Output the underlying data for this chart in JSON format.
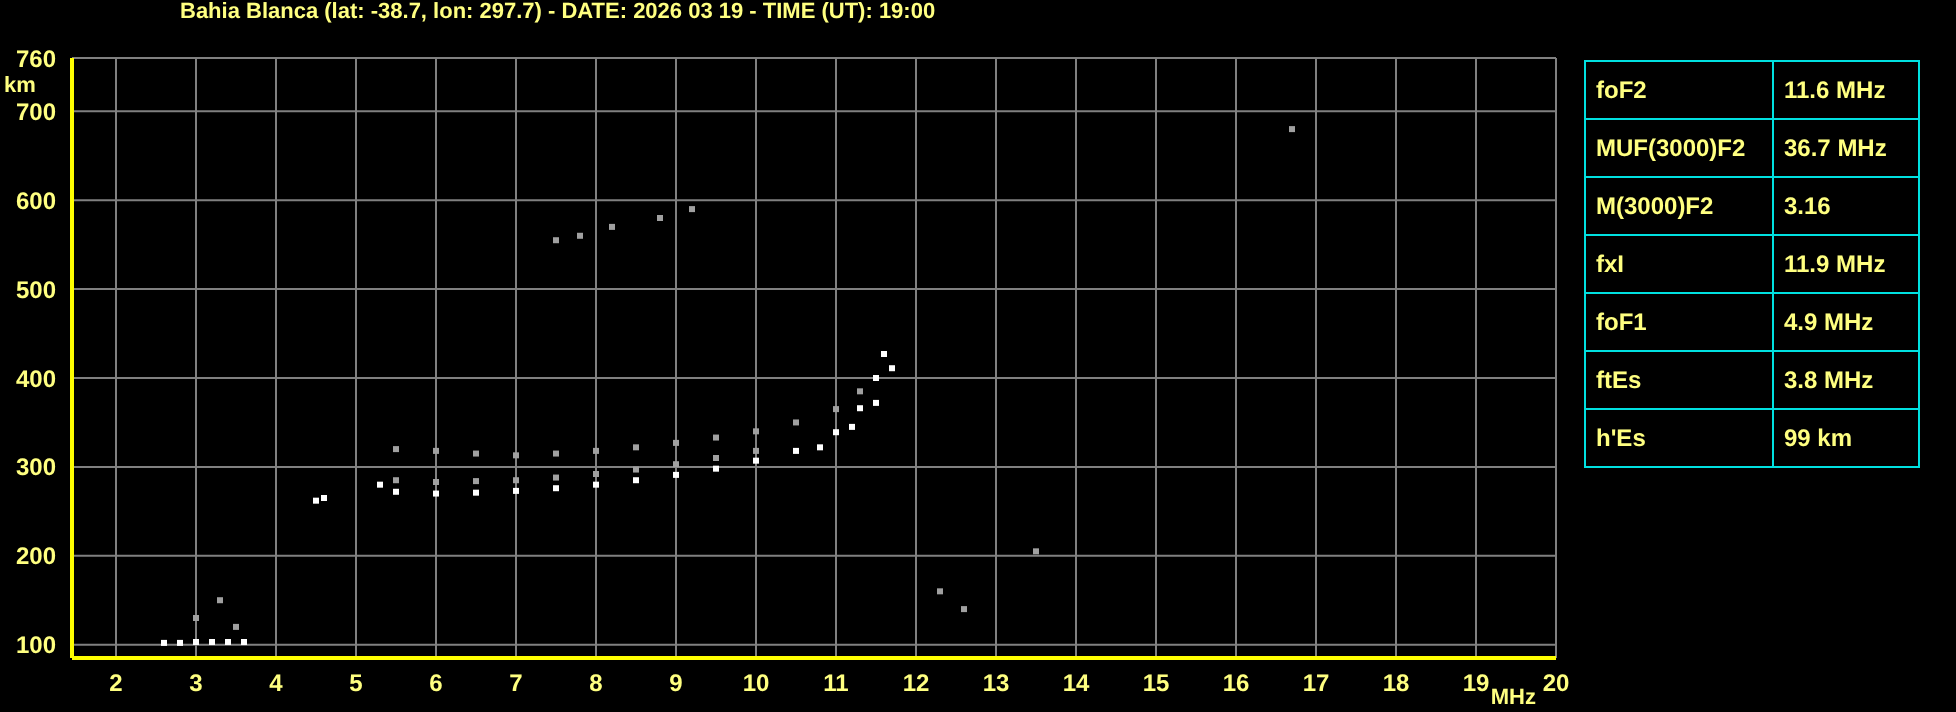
{
  "chart_data": [
    {
      "type": "scatter",
      "title": "Bahia Blanca (lat: -38.7, lon: 297.7) - DATE: 2026 03 19 - TIME (UT): 19:00",
      "xlabel": "MHz",
      "ylabel": "km",
      "xlim": [
        1.45,
        20
      ],
      "ylim": [
        85,
        760
      ],
      "xticks": [
        2,
        3,
        4,
        5,
        6,
        7,
        8,
        9,
        10,
        11,
        12,
        13,
        14,
        15,
        16,
        17,
        18,
        19,
        20
      ],
      "yticks": [
        100,
        200,
        300,
        400,
        500,
        600,
        700,
        760
      ],
      "grid": true,
      "marker": "square",
      "legend": false,
      "series": [
        {
          "color": "#ffffff",
          "x": [
            5.3,
            5.5,
            6,
            6.5,
            7,
            7.5,
            8,
            8.5,
            9,
            9.5,
            10,
            10.5,
            11,
            11.3,
            11.5,
            11.6
          ],
          "values": [
            280,
            272,
            270,
            271,
            273,
            276,
            280,
            285,
            291,
            298,
            307,
            318,
            339,
            366,
            400,
            427
          ]
        },
        {
          "color": "#ffffff",
          "x": [
            10.8,
            11.2,
            11.5,
            11.7
          ],
          "values": [
            322,
            345,
            372,
            411
          ]
        },
        {
          "color": "#ffffff",
          "x": [
            2.6,
            2.8,
            3,
            3.2,
            3.4,
            3.6,
            4.5,
            4.6
          ],
          "values": [
            102,
            102,
            103,
            103,
            103,
            103,
            262,
            265
          ]
        },
        {
          "color": "#a0a0a0",
          "x": [
            5.5,
            6,
            6.5,
            7,
            7.5,
            8,
            8.5,
            9,
            9.5,
            10,
            10.5,
            11,
            11.3
          ],
          "values": [
            320,
            318,
            315,
            313,
            315,
            318,
            322,
            327,
            333,
            340,
            350,
            365,
            385
          ]
        },
        {
          "color": "#a0a0a0",
          "x": [
            5.5,
            6,
            6.5,
            7,
            7.5,
            8,
            8.5,
            9,
            9.5,
            10
          ],
          "values": [
            285,
            283,
            284,
            285,
            288,
            292,
            297,
            303,
            310,
            318
          ]
        },
        {
          "color": "#a0a0a0",
          "x": [
            7.5,
            7.8,
            8.2,
            8.8,
            9.2,
            3,
            3.3,
            3.5,
            12.3,
            12.6,
            13.5,
            16.7
          ],
          "values": [
            555,
            560,
            570,
            580,
            590,
            130,
            150,
            120,
            160,
            140,
            205,
            680
          ]
        }
      ]
    },
    {
      "type": "other",
      "categories": [
        "foF2",
        "MUF(3000)F2",
        "M(3000)F2",
        "fxI",
        "foF1",
        "ftEs",
        "h'Es"
      ],
      "value_labels": [
        "11.6 MHz",
        "36.7 MHz",
        "3.16",
        "11.9 MHz",
        "4.9 MHz",
        "3.8 MHz",
        "99 km"
      ]
    }
  ]
}
